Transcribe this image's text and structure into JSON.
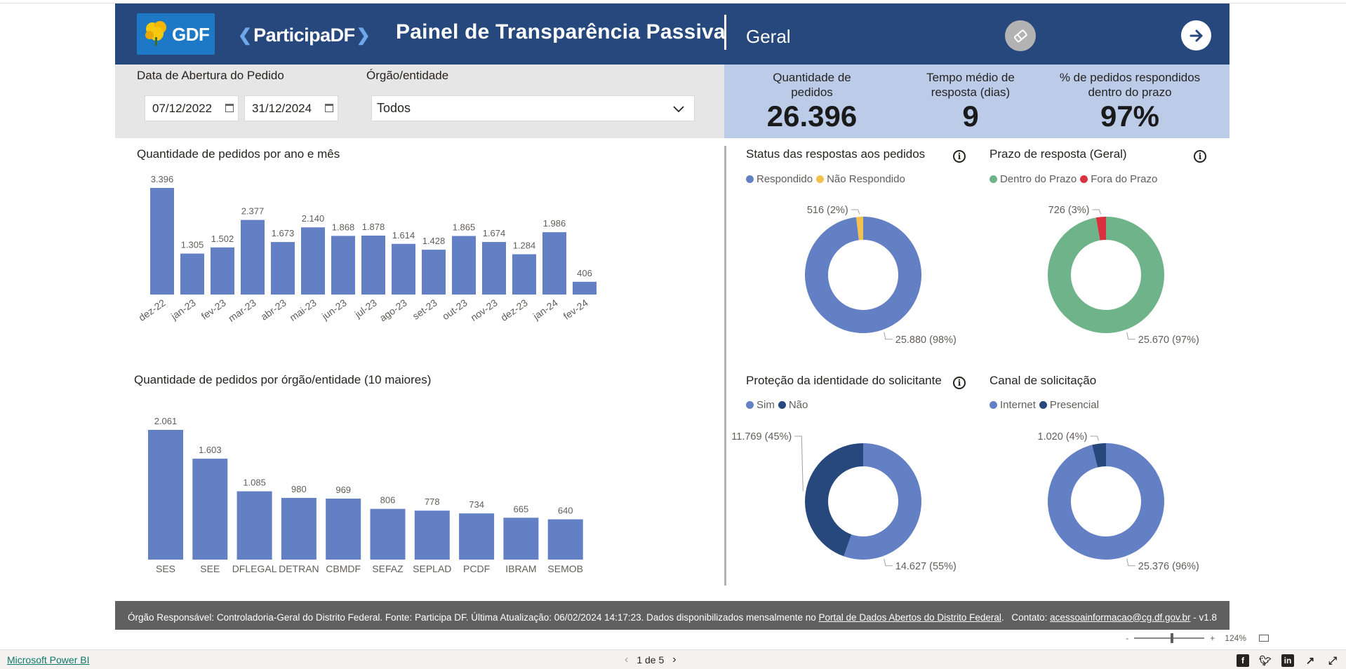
{
  "header": {
    "gdf_logo_text": "GDF",
    "participa_logo_text": "ParticipaDF",
    "title": "Painel de Transparência Passiva",
    "page_name": "Geral"
  },
  "filters": {
    "date_label": "Data de Abertura do Pedido",
    "date_start": "07/12/2022",
    "date_end": "31/12/2024",
    "org_label": "Órgão/entidade",
    "org_value": "Todos"
  },
  "kpis": [
    {
      "label_1": "Quantidade de",
      "label_2": "pedidos",
      "value": "26.396"
    },
    {
      "label_1": "Tempo médio de",
      "label_2": "resposta (dias)",
      "value": "9"
    },
    {
      "label_1": "% de pedidos respondidos",
      "label_2": "dentro do prazo",
      "value": "97%"
    }
  ],
  "chart_data": [
    {
      "type": "bar",
      "title": "Quantidade de pedidos por ano e mês",
      "categories": [
        "dez-22",
        "jan-23",
        "fev-23",
        "mar-23",
        "abr-23",
        "mai-23",
        "jun-23",
        "jul-23",
        "ago-23",
        "set-23",
        "out-23",
        "nov-23",
        "dez-23",
        "jan-24",
        "fev-24"
      ],
      "values": [
        3396,
        1305,
        1502,
        2377,
        1673,
        2140,
        1868,
        1878,
        1614,
        1428,
        1865,
        1674,
        1284,
        1986,
        406
      ],
      "value_labels": [
        "3.396",
        "1.305",
        "1.502",
        "2.377",
        "1.673",
        "2.140",
        "1.868",
        "1.878",
        "1.614",
        "1.428",
        "1.865",
        "1.674",
        "1.284",
        "1.986",
        "406"
      ],
      "color": "#6480c5"
    },
    {
      "type": "bar",
      "title": "Quantidade de pedidos por órgão/entidade (10 maiores)",
      "categories": [
        "SES",
        "SEE",
        "DFLEGAL",
        "DETRAN",
        "CBMDF",
        "SEFAZ",
        "SEPLAD",
        "PCDF",
        "IBRAM",
        "SEMOB"
      ],
      "values": [
        2061,
        1603,
        1085,
        980,
        969,
        806,
        778,
        734,
        665,
        640
      ],
      "value_labels": [
        "2.061",
        "1.603",
        "1.085",
        "980",
        "969",
        "806",
        "778",
        "734",
        "665",
        "640"
      ],
      "color": "#6480c5"
    },
    {
      "type": "pie",
      "title": "Status das respostas aos pedidos",
      "series": [
        {
          "name": "Respondido",
          "value": 25880,
          "label": "25.880 (98%)",
          "color": "#6480c5"
        },
        {
          "name": "Não Respondido",
          "value": 516,
          "label": "516 (2%)",
          "color": "#f2c14e"
        }
      ]
    },
    {
      "type": "pie",
      "title": "Prazo de resposta (Geral)",
      "series": [
        {
          "name": "Dentro do Prazo",
          "value": 25670,
          "label": "25.670 (97%)",
          "color": "#6fb38b"
        },
        {
          "name": "Fora do Prazo",
          "value": 726,
          "label": "726 (3%)",
          "color": "#d9323e"
        }
      ]
    },
    {
      "type": "pie",
      "title": "Proteção da identidade do solicitante",
      "series": [
        {
          "name": "Sim",
          "value": 14627,
          "label": "14.627 (55%)",
          "color": "#6480c5"
        },
        {
          "name": "Não",
          "value": 11769,
          "label": "11.769 (45%)",
          "color": "#27487d"
        }
      ]
    },
    {
      "type": "pie",
      "title": "Canal de solicitação",
      "series": [
        {
          "name": "Internet",
          "value": 25376,
          "label": "25.376 (96%)",
          "color": "#6480c5"
        },
        {
          "name": "Presencial",
          "value": 1020,
          "label": "1.020 (4%)",
          "color": "#27487d"
        }
      ]
    }
  ],
  "footer": {
    "text_before_link": "Órgão Responsável: Controladoria-Geral do Distrito Federal. Fonte: Participa DF. Última Atualização: 06/02/2024 14:17:23. Dados disponibilizados mensalmente no ",
    "portal_link": "Portal de Dados Abertos do Distrito Federal",
    "text_after_link": ".",
    "contact_label": "Contato: ",
    "contact_email": "acessoainformacao@cg.df.gov.br",
    "version": " - v1.8"
  },
  "powerbi": {
    "brand_link": "Microsoft Power BI",
    "page_indicator": "1 de 5",
    "zoom_minus": "-",
    "zoom_plus": "+",
    "zoom_level": "124%"
  },
  "icons": {
    "eraser": "eraser-icon",
    "next": "arrow-right-icon",
    "calendar": "calendar-icon",
    "dropdown": "chevron-down-icon",
    "info": "info-icon",
    "share": [
      "facebook-icon",
      "twitter-icon",
      "linkedin-icon",
      "share-icon",
      "fullscreen-icon"
    ]
  }
}
